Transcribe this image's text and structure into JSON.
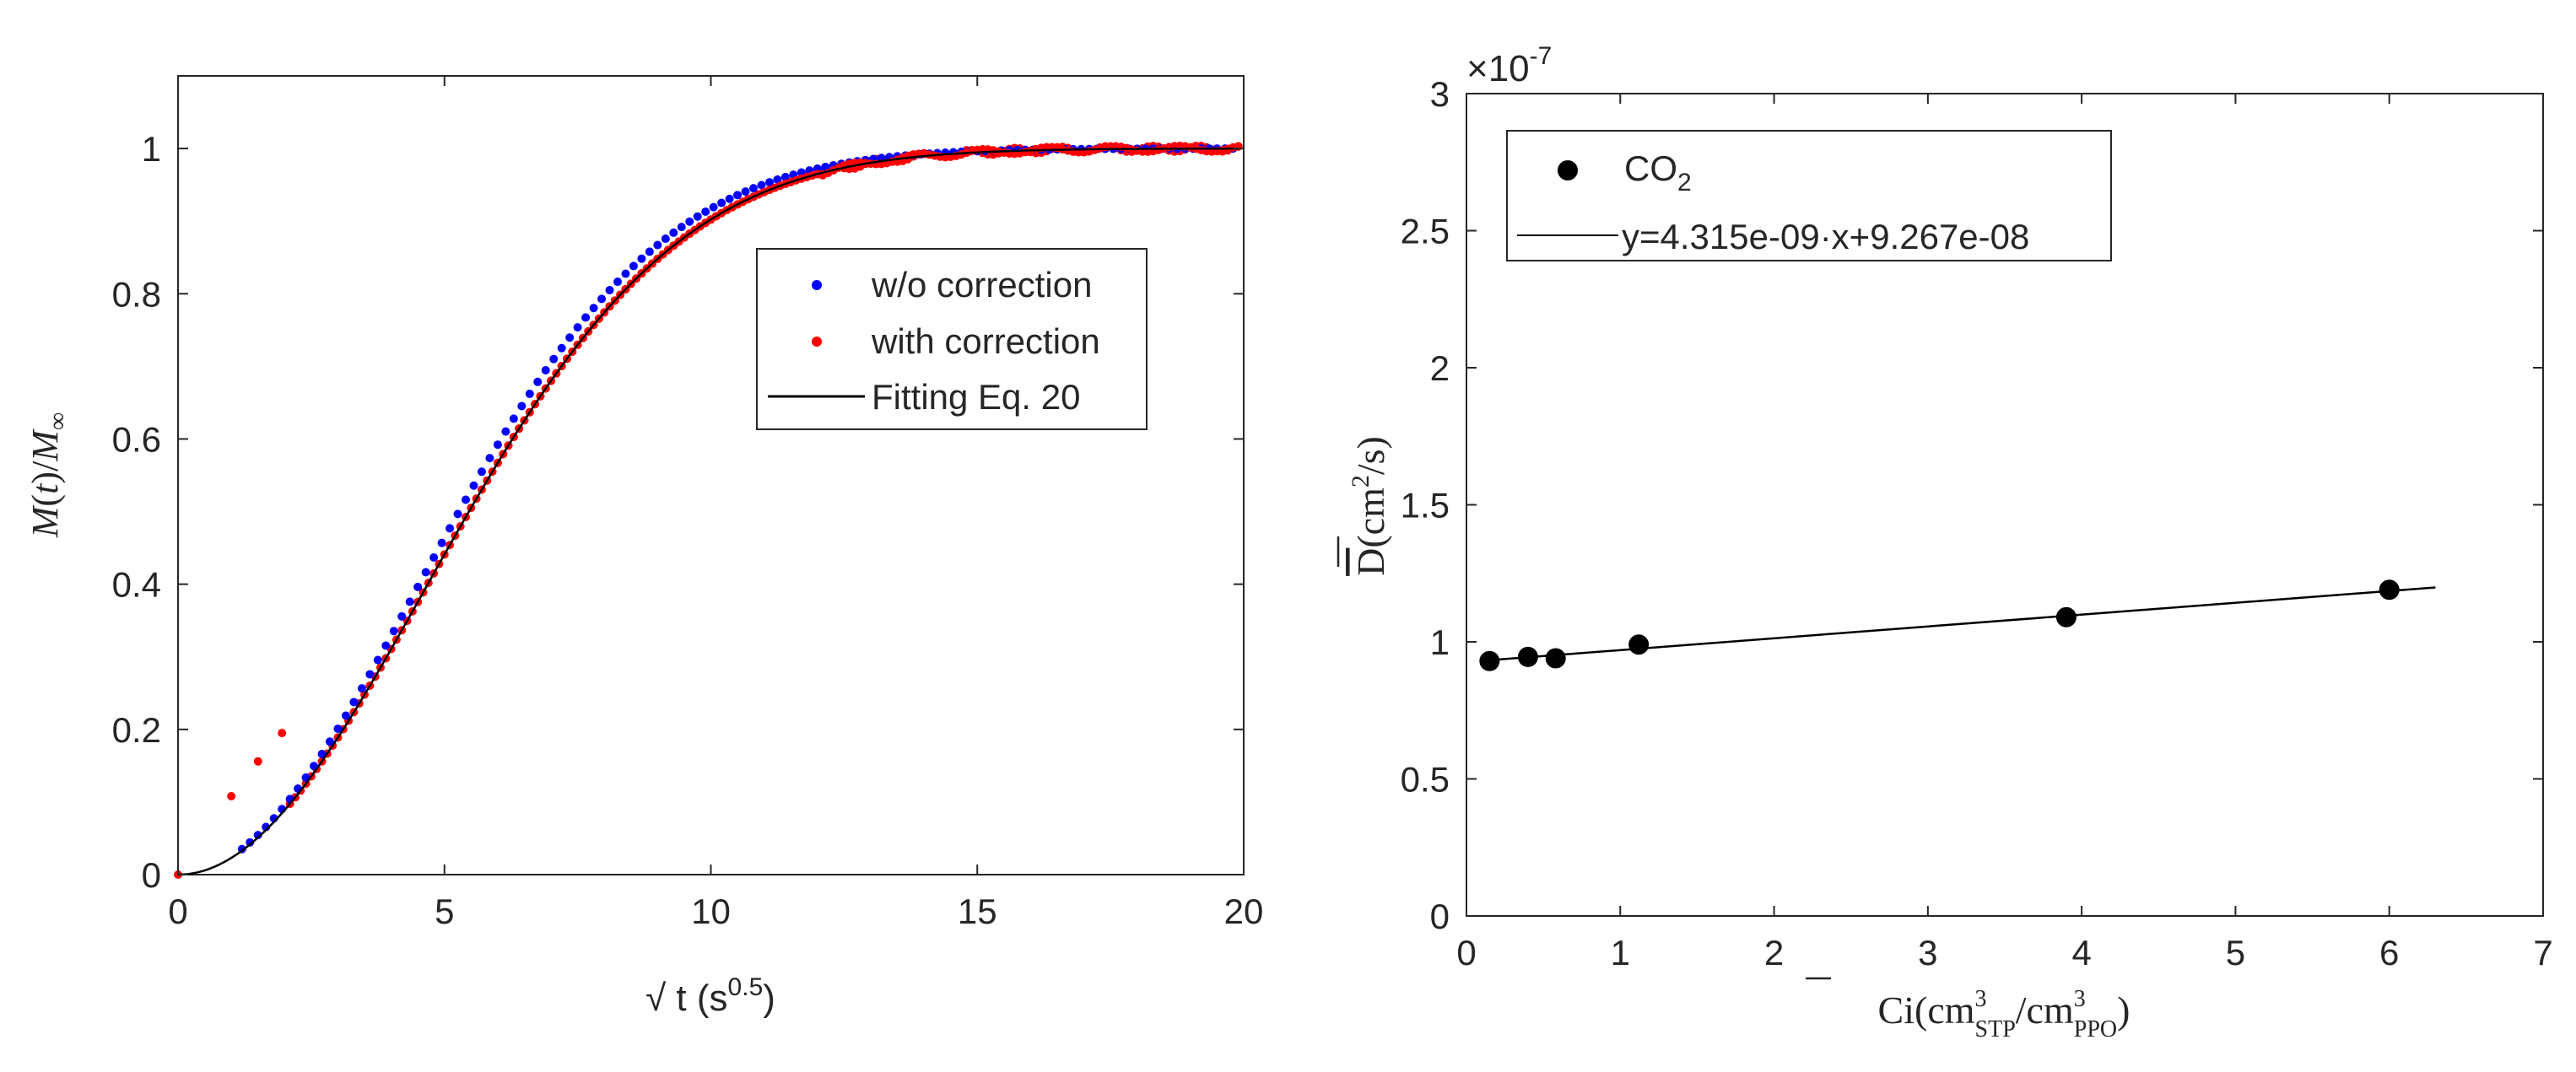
{
  "chart_data": [
    {
      "type": "scatter",
      "title": "",
      "xlabel": "√ t (s^0.5)",
      "xlabel_parts": {
        "main": "√ t (s",
        "sup": "0.5",
        "close": ")"
      },
      "ylabel": "M(t)/M∞",
      "ylabel_parts": {
        "m": "M",
        "paren_open": "(",
        "t": "t",
        "paren_close": ")",
        "slash": "/",
        "m2": "M",
        "sub": "∞"
      },
      "xlim": [
        0,
        20
      ],
      "ylim": [
        0,
        1.1
      ],
      "xticks": [
        0,
        5,
        10,
        15,
        20
      ],
      "xtick_labels": [
        "0",
        "5",
        "10",
        "15",
        "20"
      ],
      "yticks": [
        0,
        0.2,
        0.4,
        0.6,
        0.8,
        1
      ],
      "ytick_labels": [
        "0",
        "0.2",
        "0.4",
        "0.6",
        "0.8",
        "1"
      ],
      "grid": false,
      "legend_position": "top-right",
      "model": {
        "description": "M/Minf = 1 - exp(-(a*x)^2)",
        "a": 0.1525
      },
      "series": [
        {
          "name": "w/o correction",
          "kind": "points",
          "color": "#0000ff",
          "x_start": 1.2,
          "x_end": 19.85,
          "x_step": 0.15,
          "x_scale": 1.035
        },
        {
          "name": "with correction",
          "kind": "points",
          "color": "#ff0000",
          "x_start": 0,
          "x_end": 19.9,
          "x_step": 0.1,
          "x_scale": 1.0,
          "extra_points": [
            [
              1.0,
              0.108
            ],
            [
              1.5,
              0.156
            ],
            [
              1.95,
              0.195
            ]
          ]
        },
        {
          "name": "Fitting Eq. 20",
          "kind": "line",
          "color": "#000000",
          "x_start": 0,
          "x_end": 19.9,
          "x_step": 0.1,
          "x_scale": 1.0
        }
      ]
    },
    {
      "type": "scatter",
      "title": "",
      "xlabel": "C̄i(cm3STP/cm3PPO)",
      "xlabel_parts": {
        "c": "C",
        "i": "i",
        "open": "(cm",
        "sup1": "3",
        "sub1": "STP",
        "slash": "/cm",
        "sup2": "3",
        "sub2": "PPO",
        "close": ")"
      },
      "ylabel": "D̄(cm2/s)",
      "ylabel_parts": {
        "d": "D",
        "open": "(cm",
        "sup": "2",
        "close": "/s)"
      },
      "exponent_label": {
        "base": "×10",
        "exp": "-7"
      },
      "xlim": [
        0,
        7
      ],
      "ylim": [
        0,
        3
      ],
      "xticks": [
        0,
        1,
        2,
        3,
        4,
        5,
        6,
        7
      ],
      "xtick_labels": [
        "0",
        "1",
        "2",
        "3",
        "4",
        "5",
        "6",
        "7"
      ],
      "yticks": [
        0,
        0.5,
        1,
        1.5,
        2,
        2.5,
        3
      ],
      "ytick_labels": [
        "0",
        "0.5",
        "1",
        "1.5",
        "2",
        "2.5",
        "3"
      ],
      "y_multiplier": "1e-7",
      "grid": false,
      "legend_position": "top-left",
      "series": [
        {
          "name": "CO2",
          "name_parts": {
            "base": "CO",
            "sub": "2"
          },
          "kind": "points",
          "color": "#000000",
          "x": [
            0.15,
            0.4,
            0.58,
            1.12,
            3.9,
            6.0
          ],
          "y": [
            0.93,
            0.945,
            0.94,
            0.99,
            1.09,
            1.19
          ]
        },
        {
          "name": "y=4.315e-09·x+9.267e-08",
          "kind": "line",
          "color": "#000000",
          "slope": 0.04315,
          "intercept": 0.9267,
          "x_range": [
            0.1,
            6.3
          ]
        }
      ]
    }
  ]
}
